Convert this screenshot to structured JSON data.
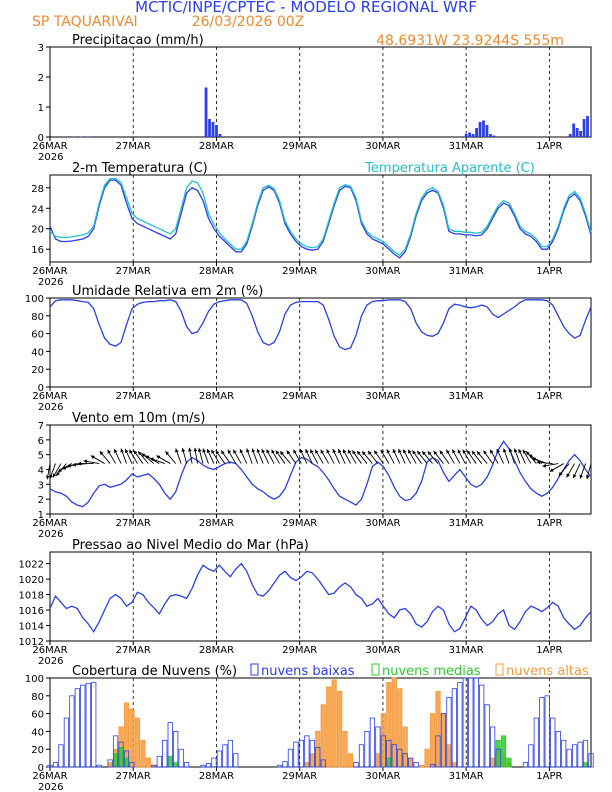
{
  "header": {
    "title": "MCTIC/INPE/CPTEC - MODELO REGIONAL WRF",
    "location": "SP TAQUARIVAI",
    "run": "26/03/2026 00Z",
    "coords": "48.6931W 23.9244S 555m"
  },
  "colors": {
    "blue": "#2a40e6",
    "cyan": "#22c0cc",
    "orange": "#f59a3c",
    "green": "#2ecc2e",
    "header_orange": "#f08a2a"
  },
  "x_axis": {
    "ticks": [
      "26MAR",
      "27MAR",
      "28MAR",
      "29MAR",
      "30MAR",
      "31MAR",
      "1APR"
    ],
    "year": "2026",
    "range_hours": [
      0,
      156
    ]
  },
  "chart_data": [
    {
      "id": "precip",
      "type": "bar",
      "title": "Precipitacao (mm/h)",
      "ylim": [
        0,
        3
      ],
      "yticks": [
        0,
        1,
        2,
        3
      ],
      "x_hours": [
        7,
        9,
        11,
        45,
        46,
        47,
        48,
        49,
        120,
        121,
        122,
        123,
        124,
        125,
        126,
        127,
        128,
        150,
        151,
        152,
        153,
        154,
        155
      ],
      "values": [
        0.01,
        0.01,
        0.01,
        1.65,
        0.6,
        0.5,
        0.4,
        0.1,
        0.1,
        0.15,
        0.1,
        0.3,
        0.5,
        0.55,
        0.4,
        0.1,
        0.05,
        0.1,
        0.45,
        0.3,
        0.2,
        0.6,
        0.7
      ]
    },
    {
      "id": "temp",
      "type": "line",
      "title": "2-m Temperatura (C)",
      "legend2": "Temperatura Aparente (C)",
      "ylim": [
        13.5,
        30.5
      ],
      "yticks": [
        16,
        20,
        24,
        28
      ],
      "series": [
        {
          "name": "2-m Temperatura (C)",
          "color": "blue",
          "values": [
            20.5,
            18.0,
            17.5,
            17.5,
            17.6,
            17.8,
            18.0,
            18.5,
            20.0,
            24.5,
            28.0,
            29.5,
            29.5,
            28.5,
            25.0,
            22.0,
            21.0,
            20.5,
            20.0,
            19.5,
            19.0,
            18.5,
            18.0,
            19.0,
            23.0,
            27.0,
            28.0,
            27.5,
            25.5,
            22.0,
            20.0,
            18.5,
            17.5,
            16.5,
            15.5,
            15.5,
            17.0,
            20.5,
            24.5,
            27.5,
            28.2,
            27.5,
            25.0,
            21.0,
            19.0,
            17.5,
            16.5,
            16.0,
            15.8,
            16.0,
            17.5,
            21.0,
            24.5,
            27.5,
            28.3,
            28.0,
            25.5,
            21.0,
            19.0,
            18.0,
            17.5,
            17.0,
            16.0,
            15.0,
            14.3,
            15.5,
            18.5,
            22.5,
            25.5,
            27.0,
            27.5,
            27.0,
            24.0,
            19.5,
            19.0,
            19.0,
            18.8,
            18.8,
            18.6,
            18.8,
            20.0,
            22.0,
            24.0,
            25.0,
            24.5,
            22.5,
            20.0,
            19.0,
            18.5,
            17.5,
            16.0,
            16.0,
            17.5,
            20.0,
            23.5,
            26.0,
            26.8,
            25.5,
            22.5,
            18.8
          ]
        },
        {
          "name": "Temperatura Aparente (C)",
          "color": "cyan",
          "values": [
            19.5,
            18.5,
            18.3,
            18.3,
            18.4,
            18.6,
            18.8,
            19.2,
            20.5,
            25.0,
            28.5,
            29.8,
            29.8,
            29.0,
            26.0,
            23.0,
            22.0,
            21.5,
            21.0,
            20.5,
            20.0,
            19.5,
            19.0,
            20.0,
            24.0,
            28.0,
            29.3,
            29.0,
            27.0,
            23.0,
            20.8,
            19.2,
            18.0,
            17.0,
            16.0,
            16.0,
            17.5,
            21.0,
            25.0,
            28.0,
            28.5,
            27.8,
            25.5,
            21.5,
            19.5,
            18.0,
            17.0,
            16.5,
            16.3,
            16.5,
            18.0,
            21.5,
            25.0,
            28.0,
            28.6,
            28.3,
            26.0,
            21.5,
            19.5,
            18.5,
            18.0,
            17.5,
            16.5,
            15.5,
            14.8,
            16.0,
            19.0,
            23.0,
            26.0,
            27.5,
            28.0,
            27.3,
            24.5,
            20.0,
            19.5,
            19.5,
            19.3,
            19.3,
            19.1,
            19.3,
            20.5,
            22.5,
            24.5,
            25.5,
            25.0,
            23.0,
            20.5,
            19.5,
            19.0,
            18.0,
            16.5,
            16.5,
            18.0,
            20.5,
            24.0,
            26.5,
            27.3,
            26.0,
            23.0,
            19.3
          ]
        }
      ]
    },
    {
      "id": "rh",
      "type": "line",
      "title": "Umidade Relativa em 2m (%)",
      "ylim": [
        0,
        100
      ],
      "yticks": [
        0,
        20,
        40,
        60,
        80,
        100
      ],
      "series": [
        {
          "name": "Umidade Relativa",
          "color": "blue",
          "values": [
            90,
            97,
            98,
            98,
            98,
            97,
            96,
            95,
            88,
            70,
            55,
            48,
            46,
            50,
            70,
            88,
            93,
            95,
            96,
            96,
            97,
            97,
            98,
            96,
            85,
            68,
            60,
            62,
            72,
            85,
            93,
            96,
            97,
            98,
            98,
            98,
            94,
            80,
            62,
            50,
            47,
            50,
            62,
            82,
            92,
            95,
            96,
            96,
            96,
            96,
            92,
            76,
            57,
            45,
            42,
            44,
            58,
            80,
            92,
            96,
            97,
            97,
            98,
            98,
            98,
            96,
            88,
            72,
            62,
            58,
            57,
            60,
            72,
            88,
            93,
            92,
            90,
            89,
            90,
            92,
            90,
            82,
            78,
            82,
            86,
            90,
            95,
            98,
            98,
            98,
            98,
            97,
            92,
            80,
            68,
            60,
            55,
            58,
            75,
            90
          ]
        }
      ]
    },
    {
      "id": "wind",
      "type": "line",
      "title": "Vento em 10m (m/s)",
      "ylim": [
        1,
        7
      ],
      "yticks": [
        1,
        2,
        3,
        4,
        5,
        6,
        7
      ],
      "series": [
        {
          "name": "Vento em 10m",
          "color": "blue",
          "values": [
            2.7,
            2.5,
            2.4,
            2.2,
            1.8,
            1.6,
            1.5,
            1.8,
            2.4,
            2.9,
            3.0,
            2.8,
            2.9,
            3.0,
            3.3,
            3.7,
            3.5,
            3.6,
            3.7,
            3.4,
            3.0,
            2.4,
            2.0,
            2.5,
            3.6,
            4.5,
            4.8,
            4.6,
            4.3,
            4.1,
            4.0,
            4.2,
            4.4,
            4.5,
            4.4,
            4.0,
            3.5,
            3.0,
            2.7,
            2.5,
            2.2,
            2.0,
            2.2,
            2.7,
            3.6,
            4.5,
            4.8,
            4.7,
            4.4,
            4.2,
            3.8,
            3.3,
            2.7,
            2.2,
            2.0,
            1.8,
            1.6,
            2.0,
            3.0,
            4.2,
            4.5,
            4.2,
            3.6,
            2.8,
            2.2,
            1.9,
            2.0,
            2.4,
            3.2,
            4.5,
            4.8,
            4.6,
            3.8,
            3.2,
            3.6,
            4.0,
            3.5,
            3.0,
            2.8,
            3.0,
            3.5,
            4.3,
            5.3,
            5.9,
            5.4,
            4.6,
            3.8,
            3.2,
            2.7,
            2.4,
            2.2,
            2.4,
            2.8,
            3.4,
            4.0,
            4.6,
            5.0,
            4.6,
            4.0,
            3.5
          ]
        }
      ],
      "barb_angles": [
        -100,
        -110,
        -120,
        -130,
        -150,
        -160,
        -170,
        -175,
        -180,
        170,
        150,
        130,
        120,
        115,
        110,
        115,
        120,
        125,
        130,
        140,
        150,
        160,
        150,
        130,
        110,
        105,
        100,
        100,
        105,
        110,
        115,
        120,
        125,
        125,
        120,
        120,
        115,
        110,
        110,
        112,
        115,
        118,
        120,
        125,
        130,
        125,
        120,
        115,
        115,
        118,
        120,
        120,
        118,
        115,
        115,
        118,
        120,
        125,
        128,
        130,
        128,
        125,
        120,
        118,
        115,
        115,
        118,
        120,
        125,
        128,
        130,
        130,
        128,
        125,
        120,
        118,
        118,
        120,
        125,
        128,
        130,
        125,
        120,
        115,
        110,
        108,
        110,
        115,
        120,
        130,
        145,
        160,
        175,
        -170,
        -150,
        -130,
        -120,
        -115,
        -110,
        -105
      ]
    },
    {
      "id": "press",
      "type": "line",
      "title": "Pressao ao Nivel Medio do Mar (hPa)",
      "ylim": [
        1012,
        1023.5
      ],
      "yticks": [
        1012,
        1014,
        1016,
        1018,
        1020,
        1022
      ],
      "series": [
        {
          "name": "Pressao",
          "color": "blue",
          "values": [
            1016.2,
            1017.8,
            1017.0,
            1016.2,
            1016.5,
            1016.2,
            1015.0,
            1014.2,
            1013.2,
            1014.5,
            1016.0,
            1017.5,
            1018.0,
            1017.5,
            1016.5,
            1017.0,
            1018.3,
            1018.0,
            1017.0,
            1016.3,
            1015.5,
            1016.8,
            1017.8,
            1018.0,
            1017.8,
            1017.5,
            1018.8,
            1020.5,
            1021.8,
            1021.3,
            1021.0,
            1021.8,
            1021.0,
            1020.3,
            1021.3,
            1022.0,
            1021.0,
            1019.3,
            1018.0,
            1017.8,
            1018.5,
            1019.5,
            1020.5,
            1021.0,
            1020.2,
            1019.8,
            1020.3,
            1021.0,
            1020.8,
            1020.0,
            1019.0,
            1018.0,
            1018.2,
            1019.0,
            1019.5,
            1019.0,
            1018.0,
            1017.5,
            1016.5,
            1016.8,
            1017.5,
            1016.5,
            1015.5,
            1015.0,
            1016.0,
            1016.2,
            1015.5,
            1014.2,
            1013.8,
            1014.5,
            1015.8,
            1016.5,
            1016.0,
            1014.2,
            1013.2,
            1013.6,
            1015.0,
            1016.5,
            1016.0,
            1014.8,
            1014.0,
            1014.5,
            1015.5,
            1016.0,
            1014.0,
            1013.5,
            1014.5,
            1015.8,
            1016.5,
            1016.2,
            1015.8,
            1016.3,
            1017.0,
            1016.5,
            1015.0,
            1014.2,
            1013.5,
            1014.0,
            1015.0,
            1015.8
          ]
        }
      ]
    },
    {
      "id": "clouds",
      "type": "bar",
      "title": "Cobertura de Nuvens (%)",
      "legend": [
        "nuvens baixas",
        "nuvens medias",
        "nuvens altas"
      ],
      "ylim": [
        0,
        100
      ],
      "yticks": [
        0,
        20,
        40,
        60,
        80,
        100
      ],
      "series": [
        {
          "name": "nuvens baixas",
          "color": "blue",
          "values": [
            2,
            5,
            25,
            55,
            80,
            88,
            92,
            94,
            95,
            2,
            0,
            8,
            35,
            28,
            18,
            5,
            0,
            0,
            0,
            2,
            12,
            30,
            50,
            40,
            20,
            5,
            0,
            0,
            2,
            4,
            10,
            18,
            25,
            30,
            15,
            0,
            0,
            0,
            0,
            0,
            0,
            0,
            2,
            6,
            20,
            28,
            30,
            35,
            30,
            22,
            8,
            0,
            0,
            0,
            0,
            0,
            5,
            25,
            40,
            55,
            45,
            35,
            30,
            25,
            20,
            15,
            10,
            5,
            0,
            0,
            3,
            35,
            60,
            78,
            88,
            95,
            100,
            100,
            100,
            92,
            70,
            45,
            20,
            0,
            0,
            0,
            0,
            5,
            25,
            55,
            78,
            80,
            55,
            40,
            30,
            20,
            25,
            28,
            30,
            15
          ]
        },
        {
          "name": "nuvens medias",
          "color": "green",
          "values": [
            0,
            0,
            0,
            0,
            0,
            0,
            0,
            0,
            0,
            0,
            0,
            0,
            15,
            22,
            10,
            0,
            0,
            0,
            0,
            0,
            0,
            0,
            12,
            5,
            0,
            0,
            0,
            0,
            0,
            0,
            0,
            0,
            0,
            0,
            0,
            0,
            0,
            0,
            0,
            0,
            0,
            0,
            0,
            0,
            0,
            0,
            0,
            0,
            0,
            0,
            0,
            0,
            0,
            0,
            0,
            0,
            0,
            0,
            0,
            0,
            0,
            0,
            10,
            0,
            0,
            0,
            0,
            0,
            0,
            0,
            0,
            0,
            0,
            0,
            0,
            0,
            0,
            0,
            0,
            0,
            0,
            0,
            30,
            35,
            10,
            0,
            0,
            0,
            0,
            0,
            0,
            0,
            0,
            0,
            0,
            0,
            0,
            0,
            5,
            0
          ]
        },
        {
          "name": "nuvens altas",
          "color": "orange",
          "values": [
            0,
            0,
            0,
            0,
            0,
            0,
            0,
            0,
            0,
            0,
            0,
            5,
            20,
            45,
            72,
            65,
            55,
            30,
            10,
            2,
            0,
            0,
            0,
            0,
            0,
            0,
            0,
            0,
            0,
            0,
            0,
            0,
            0,
            0,
            0,
            0,
            0,
            0,
            0,
            0,
            0,
            0,
            0,
            0,
            0,
            0,
            0,
            5,
            15,
            40,
            70,
            90,
            98,
            85,
            40,
            15,
            0,
            0,
            0,
            0,
            15,
            60,
            95,
            100,
            88,
            45,
            10,
            0,
            2,
            20,
            60,
            85,
            60,
            25,
            5,
            0,
            0,
            0,
            0,
            0,
            0,
            10,
            20,
            15,
            5,
            0,
            0,
            0,
            0,
            0,
            0,
            0,
            0,
            0,
            0,
            0,
            0,
            0,
            0,
            0
          ]
        }
      ]
    }
  ]
}
